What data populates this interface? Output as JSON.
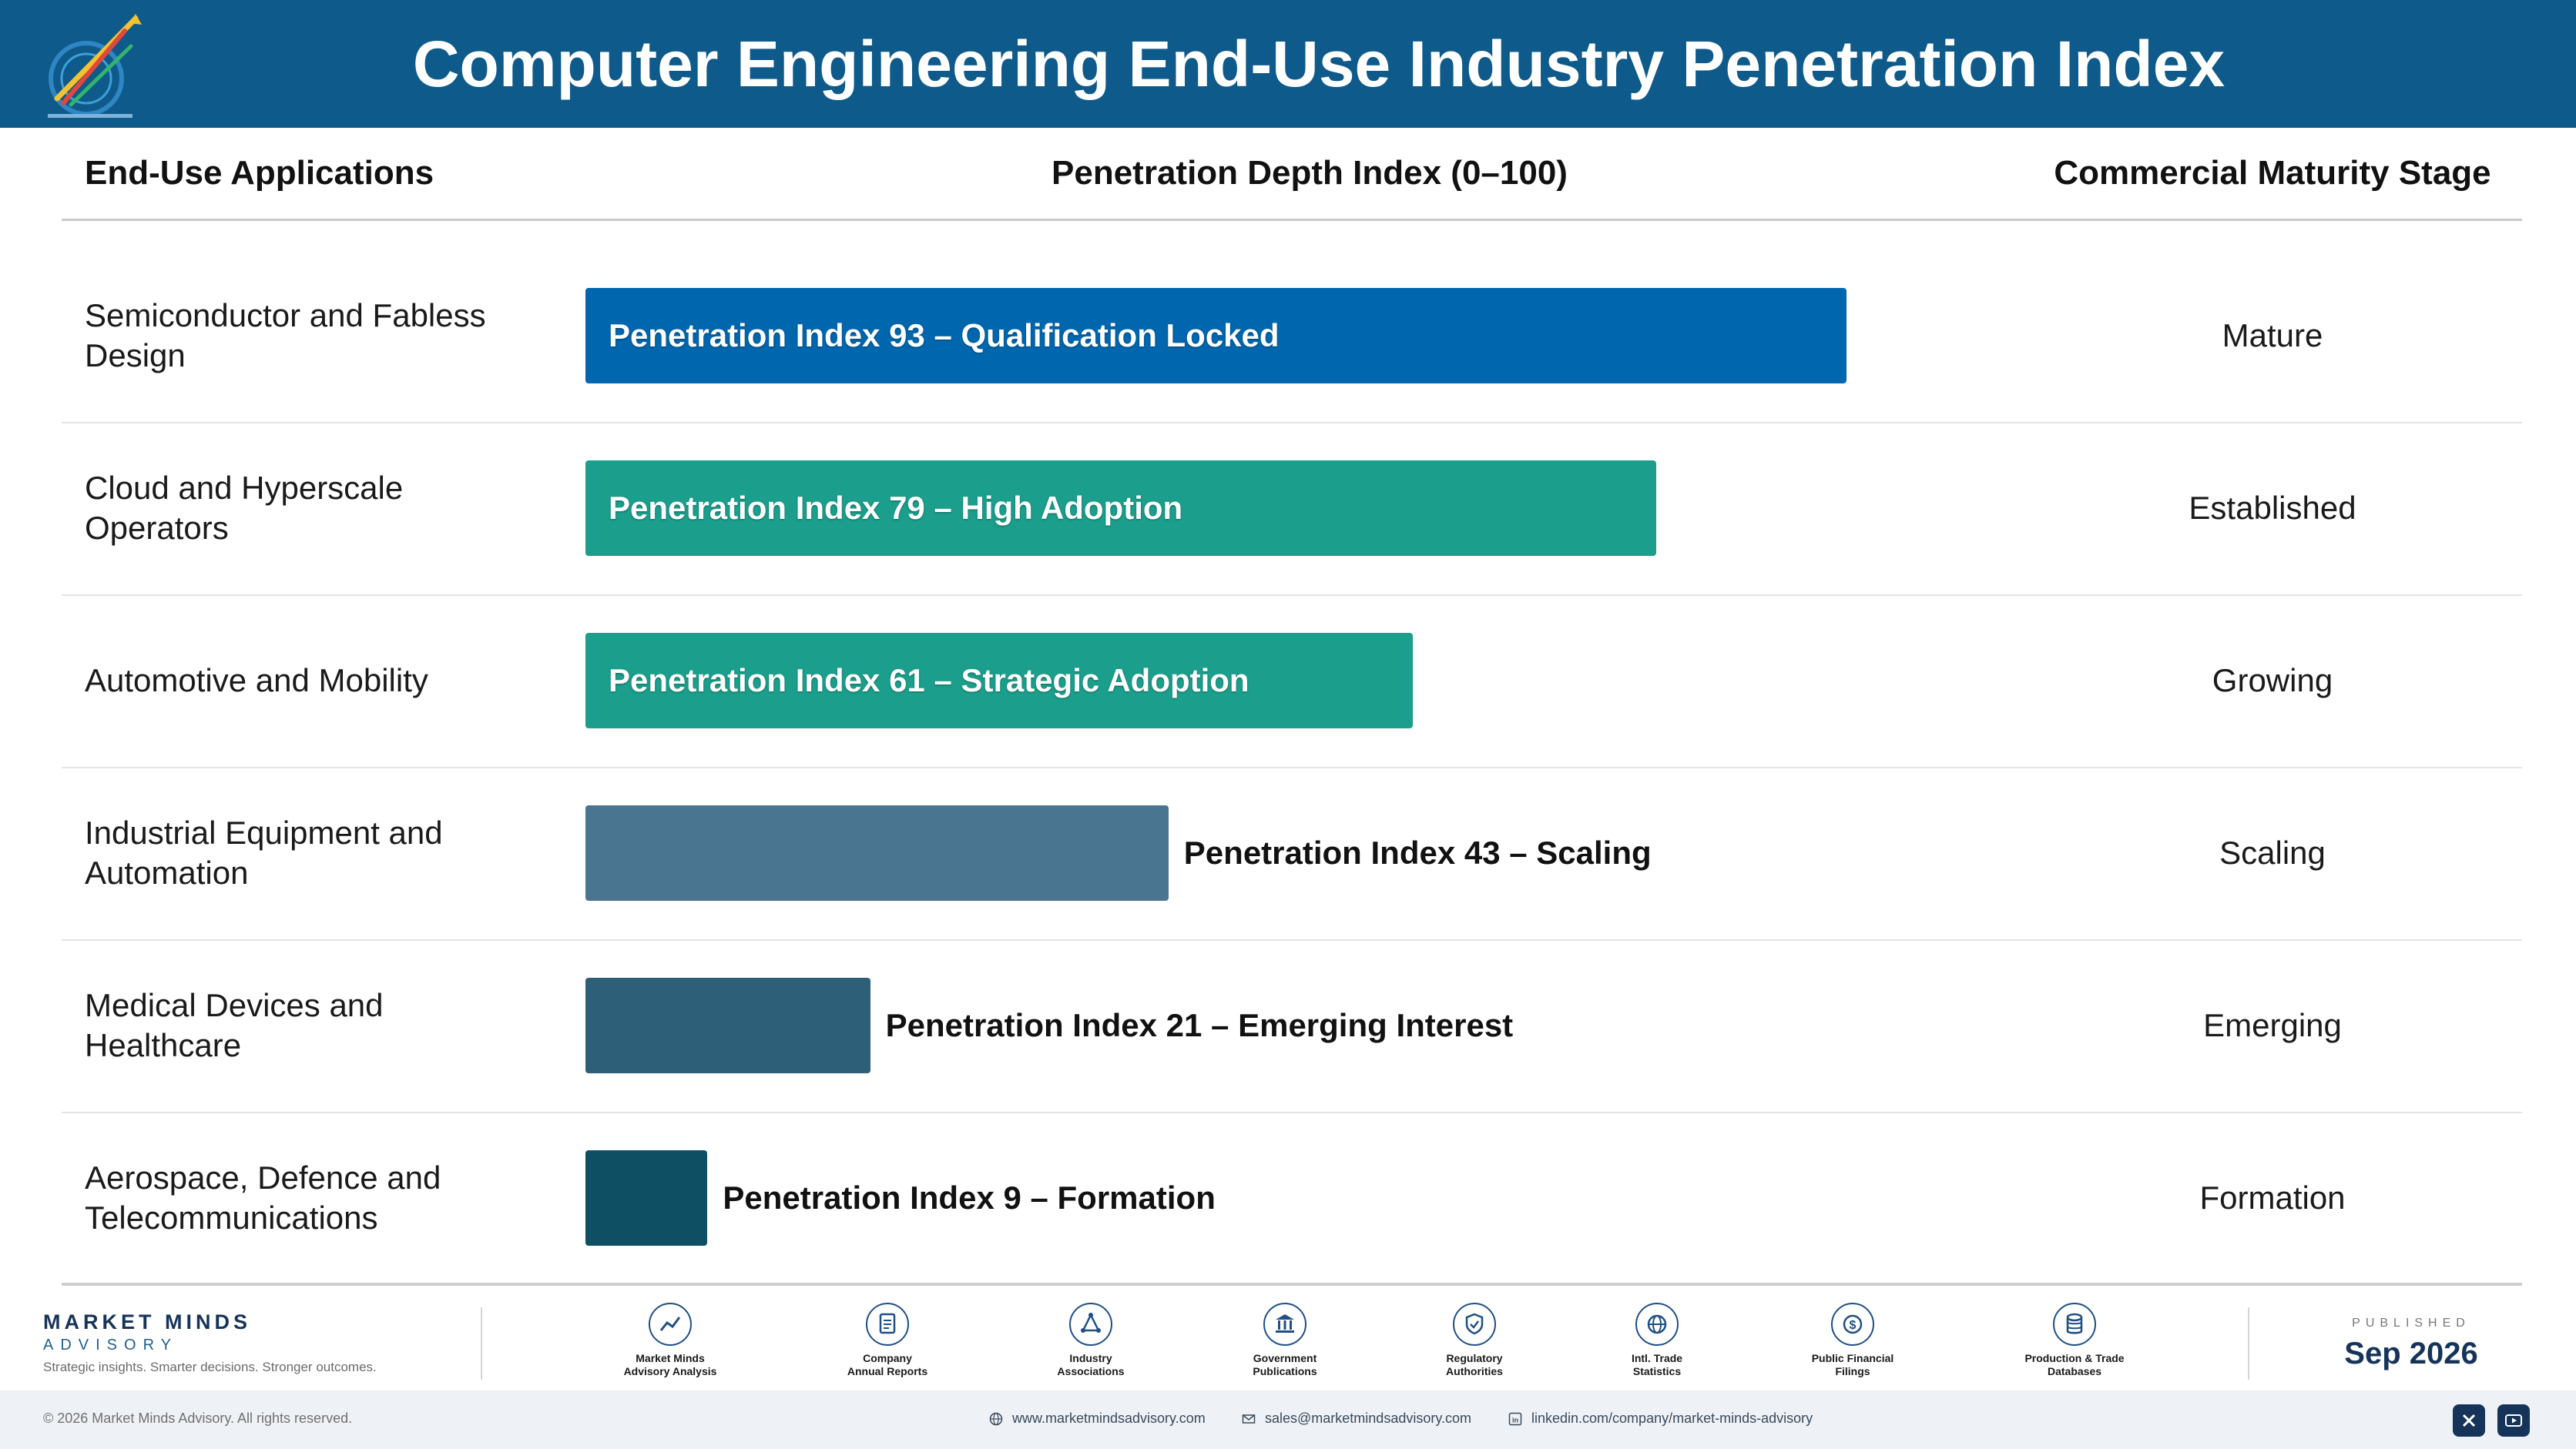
{
  "header": {
    "title": "Computer Engineering End-Use Industry Penetration Index"
  },
  "columns": {
    "applications": "End-Use Applications",
    "index": "Penetration Depth Index (0–100)",
    "stage": "Commercial Maturity Stage"
  },
  "chart_data": {
    "type": "bar",
    "orientation": "horizontal",
    "xlim": [
      0,
      100
    ],
    "categories": [
      "Semiconductor and Fabless Design",
      "Cloud and Hyperscale Operators",
      "Automotive and Mobility",
      "Industrial Equipment and Automation",
      "Medical Devices and Healthcare",
      "Aerospace, Defence and Telecommunications"
    ],
    "values": [
      93,
      79,
      61,
      43,
      21,
      9
    ],
    "bar_labels": [
      "Penetration Index 93 – Qualification Locked",
      "Penetration Index 79 – High Adoption",
      "Penetration Index 61 – Strategic Adoption",
      "Penetration Index 43 – Scaling",
      "Penetration Index 21 – Emerging Interest",
      "Penetration Index 9 – Formation"
    ],
    "stages": [
      "Mature",
      "Established",
      "Growing",
      "Scaling",
      "Emerging",
      "Formation"
    ],
    "colors": [
      "#0066ad",
      "#1b9e8b",
      "#1b9e8b",
      "#4a7590",
      "#2e5f78",
      "#0e4f63"
    ]
  },
  "footer": {
    "brand_name": "MARKET MINDS",
    "brand_sub": "ADVISORY",
    "tagline": "Strategic insights. Smarter decisions. Stronger outcomes.",
    "sources": [
      {
        "icon": "trend-chart-icon",
        "label": "Market Minds\nAdvisory Analysis"
      },
      {
        "icon": "document-icon",
        "label": "Company\nAnnual Reports"
      },
      {
        "icon": "network-icon",
        "label": "Industry\nAssociations"
      },
      {
        "icon": "government-building-icon",
        "label": "Government\nPublications"
      },
      {
        "icon": "shield-icon",
        "label": "Regulatory\nAuthorities"
      },
      {
        "icon": "globe-icon",
        "label": "Intl. Trade\nStatistics"
      },
      {
        "icon": "dollar-coin-icon",
        "label": "Public Financial\nFilings"
      },
      {
        "icon": "database-icon",
        "label": "Production & Trade\nDatabases"
      }
    ],
    "published_label": "PUBLISHED",
    "published_date": "Sep 2026",
    "copyright": "© 2026 Market Minds Advisory. All rights reserved.",
    "website": "www.marketmindsadvisory.com",
    "email": "sales@marketmindsadvisory.com",
    "linkedin": "linkedin.com/company/market-minds-advisory"
  }
}
